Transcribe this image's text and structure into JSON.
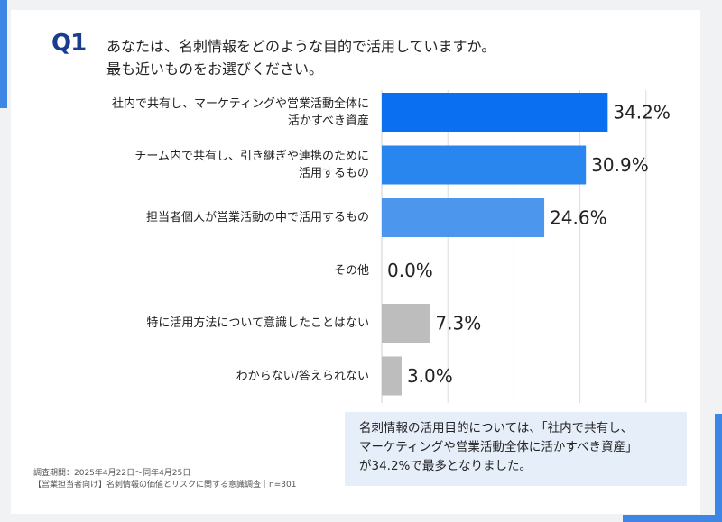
{
  "question": {
    "label": "Q1",
    "line1": "あなたは、名刺情報をどのような目的で活用していますか。",
    "line2": "最も近いものをお選びください。"
  },
  "chart_data": {
    "type": "bar",
    "orientation": "horizontal",
    "categories": [
      [
        "社内で共有し、マーケティングや営業活動全体に",
        "活かすべき資産"
      ],
      [
        "チーム内で共有し、引き継ぎや連携のために",
        "活用するもの"
      ],
      [
        "担当者個人が営業活動の中で活用するもの"
      ],
      [
        "その他"
      ],
      [
        "特に活用方法について意識したことはない"
      ],
      [
        "わからない/答えられない"
      ]
    ],
    "values": [
      34.2,
      30.9,
      24.6,
      0.0,
      7.3,
      3.0
    ],
    "value_labels": [
      "34.2%",
      "30.9%",
      "24.6%",
      "0.0%",
      "7.3%",
      "3.0%"
    ],
    "colors": [
      "#0b6ff1",
      "#2a86ef",
      "#4d96ee",
      "#bdbdbd",
      "#bdbdbd",
      "#bdbdbd"
    ],
    "xlim": [
      0,
      40
    ],
    "grid": true
  },
  "survey_notes": {
    "period": "調査期間：2025年4月22日〜同年4月25日",
    "title": "【営業担当者向け】名刺情報の価値とリスクに関する意識調査｜n=301"
  },
  "summary": {
    "line1": "名刺情報の活用目的については、「社内で共有し、",
    "line2": "マーケティングや営業活動全体に活かすべき資産」",
    "line3": "が34.2%で最多となりました。"
  },
  "colors": {
    "accent": "#3e86e6",
    "question_label": "#1a3d8f",
    "summary_bg": "#e6eef9"
  }
}
